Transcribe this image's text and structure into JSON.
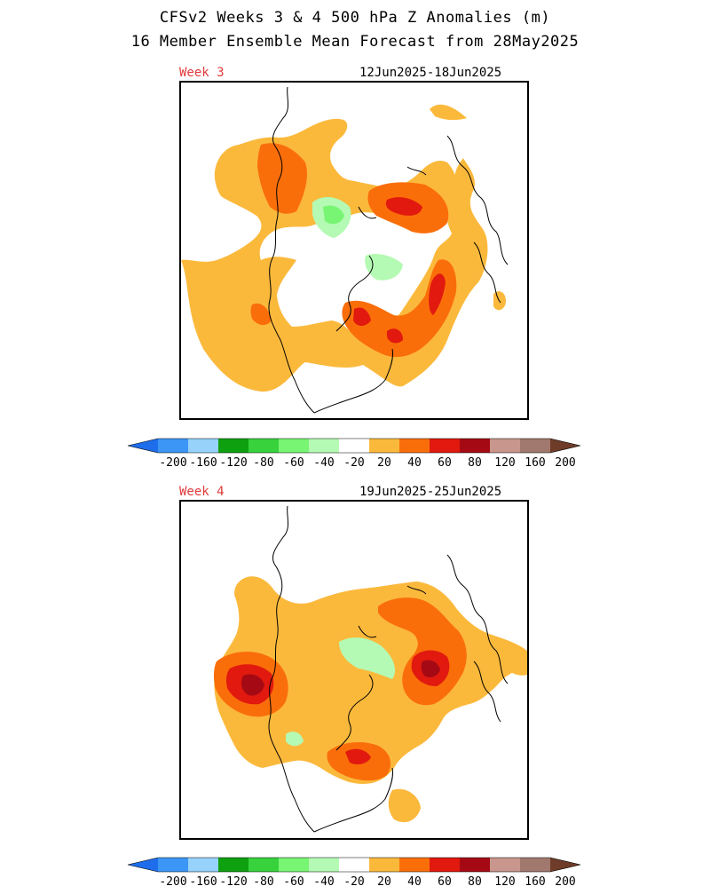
{
  "figure": {
    "title_line1": "CFSv2 Weeks 3 & 4 500 hPa Z Anomalies (m)",
    "title_line2": "16 Member Ensemble Mean Forecast from 28May2025"
  },
  "panels": [
    {
      "week_label": "Week 3",
      "date_range": "12Jun2025-18Jun2025",
      "anomaly_regions": [
        {
          "level": 20,
          "region": "broad positive belt over North Pacific, Alaska, Siberia and North Atlantic"
        },
        {
          "level": 40,
          "region": "western Russia / Europe ridge"
        },
        {
          "level": 60,
          "region": "Scandinavia / Barents Sea"
        },
        {
          "level": 40,
          "region": "Hudson Bay / eastern Canada"
        },
        {
          "level": 60,
          "region": "Hudson Bay core"
        },
        {
          "level": 60,
          "region": "eastern North Atlantic"
        },
        {
          "level": 40,
          "region": "central Pacific"
        },
        {
          "level": -20,
          "region": "Kara Sea / northern Russia"
        },
        {
          "level": -20,
          "region": "Greenland / Arctic"
        }
      ]
    },
    {
      "week_label": "Week 4",
      "date_range": "19Jun2025-25Jun2025",
      "anomaly_regions": [
        {
          "level": 20,
          "region": "broad positive belt around the hemisphere"
        },
        {
          "level": 80,
          "region": "Sea of Okhotsk / East Siberia"
        },
        {
          "level": 80,
          "region": "Scandinavia / Europe"
        },
        {
          "level": 60,
          "region": "Baltic / western Russia"
        },
        {
          "level": 40,
          "region": "central Canada / Hudson Bay"
        },
        {
          "level": 40,
          "region": "western Russia"
        },
        {
          "level": -20,
          "region": "Kara Sea"
        },
        {
          "level": -20,
          "region": "Bering Sea / Aleutians"
        }
      ]
    }
  ],
  "colorbar": {
    "tick_labels": [
      "-200",
      "-160",
      "-120",
      "-80",
      "-60",
      "-40",
      "-20",
      "20",
      "40",
      "60",
      "80",
      "120",
      "160",
      "200"
    ],
    "colors": {
      "lt_minus200": "#1e6eeb",
      "m200_m160": "#3c96f5",
      "m160_m120": "#96d2fa",
      "m120_m80": "#0fa00f",
      "m80_m60": "#37d23c",
      "m60_m40": "#78f573",
      "m40_m20": "#b4fab4",
      "m20_20": "#ffffff",
      "p20_40": "#fbb93c",
      "p40_60": "#fa6e0a",
      "p60_80": "#e1190f",
      "p80_120": "#a50a14",
      "p120_160": "#c8968c",
      "p160_200": "#a0786e",
      "gt_200": "#6e3c28"
    }
  }
}
